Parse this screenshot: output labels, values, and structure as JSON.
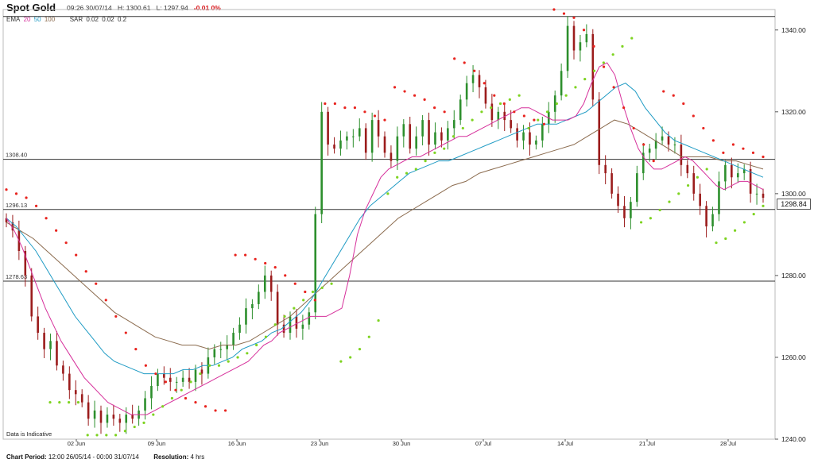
{
  "header": {
    "title": "Spot Gold",
    "timestamp": "09:26 30/07/14",
    "high": "H: 1300.61",
    "low": "L: 1297.94",
    "change": "-0.01 0%"
  },
  "indicators": {
    "ema_label": "EMA",
    "ema_periods": [
      "20",
      "50",
      "100"
    ],
    "sar_label": "SAR",
    "sar_params": [
      "0.02",
      "0.02",
      "0.2"
    ]
  },
  "footer": {
    "period_label": "Chart Period:",
    "period_value": "12:00 26/05/14 - 00:00 31/07/14",
    "resolution_label": "Resolution:",
    "resolution_value": "4 hrs"
  },
  "note": "Data is Indicative",
  "last_price": "1298.84",
  "colors": {
    "ema20": "#d6309b",
    "ema50": "#1f9bc4",
    "ema100": "#8b6b4e",
    "sar_up": "#7ed321",
    "sar_down": "#e8241f",
    "candle_up": "#2d8f2d",
    "candle_down": "#9b1c1c",
    "change": "#d9171b"
  },
  "chart_data": {
    "type": "candlestick",
    "title": "Spot Gold",
    "ylim": [
      1240,
      1345
    ],
    "yticks": [
      "1340.00",
      "1320.00",
      "1300.00",
      "1280.00",
      "1260.00",
      "1240.00"
    ],
    "xticks": [
      "02 Jun",
      "09 Jun",
      "16 Jun",
      "23 Jun",
      "30 Jun",
      "07 Jul",
      "14 Jul",
      "21 Jul",
      "28 Jul"
    ],
    "reference_lines": [
      {
        "value": 1343.3,
        "label": ""
      },
      {
        "value": 1308.4,
        "label": "1308.40"
      },
      {
        "value": 1296.13,
        "label": "1296.13"
      },
      {
        "value": 1278.63,
        "label": "1278.63"
      }
    ],
    "close": [
      1293,
      1291,
      1286,
      1280,
      1270,
      1266,
      1262,
      1264,
      1258,
      1256,
      1252,
      1251,
      1249,
      1245,
      1247,
      1244,
      1246,
      1245,
      1244,
      1246,
      1245,
      1247,
      1250,
      1253,
      1256,
      1255,
      1254,
      1254,
      1255,
      1254,
      1257,
      1256,
      1260,
      1262,
      1262,
      1263,
      1266,
      1268,
      1272,
      1273,
      1276,
      1280,
      1276,
      1268,
      1266,
      1270,
      1267,
      1268,
      1271,
      1295,
      1320,
      1312,
      1311,
      1313,
      1314,
      1314,
      1316,
      1310,
      1318,
      1314,
      1310,
      1308,
      1314,
      1317,
      1311,
      1314,
      1318,
      1312,
      1315,
      1313,
      1316,
      1318,
      1323,
      1327,
      1329,
      1326,
      1322,
      1318,
      1320,
      1318,
      1316,
      1313,
      1315,
      1312,
      1313,
      1317,
      1320,
      1324,
      1330,
      1341,
      1335,
      1337,
      1339,
      1323,
      1307,
      1305,
      1300,
      1297,
      1294,
      1298,
      1305,
      1310,
      1311,
      1313,
      1314,
      1312,
      1312,
      1307,
      1305,
      1300,
      1297,
      1292,
      1295,
      1303,
      1307,
      1304,
      1305,
      1306,
      1300,
      1300,
      1299
    ],
    "ema20": [
      1294,
      1291,
      1287,
      1282,
      1277,
      1272,
      1268,
      1264,
      1261,
      1258,
      1255,
      1253,
      1251,
      1249,
      1248,
      1247,
      1246,
      1246,
      1246,
      1247,
      1248,
      1249,
      1250,
      1251,
      1252,
      1253,
      1254,
      1255,
      1256,
      1257,
      1258,
      1259,
      1261,
      1263,
      1264,
      1266,
      1267,
      1268,
      1269,
      1270,
      1270,
      1270,
      1271,
      1272,
      1280,
      1290,
      1296,
      1300,
      1304,
      1306,
      1307,
      1308,
      1309,
      1309,
      1310,
      1311,
      1312,
      1313,
      1314,
      1314,
      1315,
      1316,
      1317,
      1318,
      1319,
      1320,
      1321,
      1321,
      1320,
      1319,
      1318,
      1318,
      1318,
      1319,
      1322,
      1327,
      1331,
      1332,
      1329,
      1322,
      1316,
      1311,
      1308,
      1306,
      1306,
      1307,
      1308,
      1309,
      1308,
      1306,
      1304,
      1302,
      1301,
      1302,
      1303,
      1303,
      1302,
      1301
    ],
    "ema50": [
      1294,
      1292,
      1289,
      1286,
      1282,
      1278,
      1274,
      1270,
      1267,
      1264,
      1261,
      1259,
      1258,
      1257,
      1256,
      1256,
      1256,
      1256,
      1257,
      1257,
      1258,
      1258,
      1259,
      1260,
      1262,
      1263,
      1264,
      1266,
      1267,
      1269,
      1271,
      1274,
      1278,
      1282,
      1286,
      1290,
      1294,
      1297,
      1299,
      1301,
      1303,
      1305,
      1306,
      1307,
      1308,
      1308,
      1309,
      1310,
      1311,
      1312,
      1313,
      1314,
      1315,
      1316,
      1317,
      1317,
      1317,
      1318,
      1319,
      1320,
      1322,
      1324,
      1326,
      1327,
      1325,
      1321,
      1318,
      1315,
      1313,
      1312,
      1311,
      1310,
      1309,
      1308,
      1307,
      1306,
      1305,
      1304
    ],
    "ema100": [
      1293,
      1291,
      1289,
      1286,
      1283,
      1280,
      1277,
      1274,
      1271,
      1269,
      1267,
      1265,
      1264,
      1263,
      1263,
      1262,
      1263,
      1263,
      1264,
      1266,
      1268,
      1270,
      1273,
      1276,
      1279,
      1282,
      1285,
      1288,
      1291,
      1294,
      1296,
      1298,
      1300,
      1302,
      1303,
      1305,
      1306,
      1307,
      1308,
      1309,
      1310,
      1311,
      1312,
      1314,
      1316,
      1318,
      1317,
      1315,
      1313,
      1311,
      1309,
      1309,
      1309,
      1308,
      1308,
      1307,
      1306
    ],
    "sar_up": [
      1249,
      1249,
      1249,
      1249,
      1241,
      1241,
      1241,
      1241,
      1242,
      1243,
      1244,
      1246,
      1248,
      1250,
      1252,
      1254,
      1256,
      1258,
      1258,
      1259,
      1260,
      1261,
      1263,
      1265,
      1268,
      1270,
      1272,
      1274,
      1276,
      1277,
      1278,
      1259,
      1260,
      1262,
      1265,
      1269,
      1300,
      1304,
      1305,
      1306,
      1308,
      1310,
      1311,
      1314,
      1316,
      1318,
      1320,
      1321,
      1322,
      1323,
      1324,
      1316,
      1318,
      1320,
      1322,
      1324,
      1326,
      1328,
      1330,
      1332,
      1334,
      1336,
      1338,
      1293,
      1294,
      1296,
      1298,
      1300,
      1302,
      1304,
      1306,
      1288,
      1289,
      1291,
      1293,
      1295,
      1297
    ],
    "sar_down": [
      1301,
      1300,
      1299,
      1297,
      1294,
      1291,
      1288,
      1285,
      1281,
      1278,
      1274,
      1270,
      1266,
      1262,
      1258,
      1256,
      1254,
      1252,
      1250,
      1249,
      1248,
      1247,
      1247,
      1285,
      1285,
      1284,
      1283,
      1282,
      1280,
      1278,
      1276,
      1274,
      1322,
      1322,
      1321,
      1321,
      1320,
      1319,
      1318,
      1326,
      1325,
      1324,
      1323,
      1321,
      1320,
      1333,
      1332,
      1330,
      1327,
      1324,
      1322,
      1320,
      1319,
      1318,
      1317,
      1345,
      1344,
      1343,
      1340,
      1336,
      1331,
      1326,
      1321,
      1316,
      1312,
      1308,
      1325,
      1324,
      1322,
      1319,
      1316,
      1313,
      1310,
      1312,
      1311,
      1310,
      1309
    ]
  }
}
